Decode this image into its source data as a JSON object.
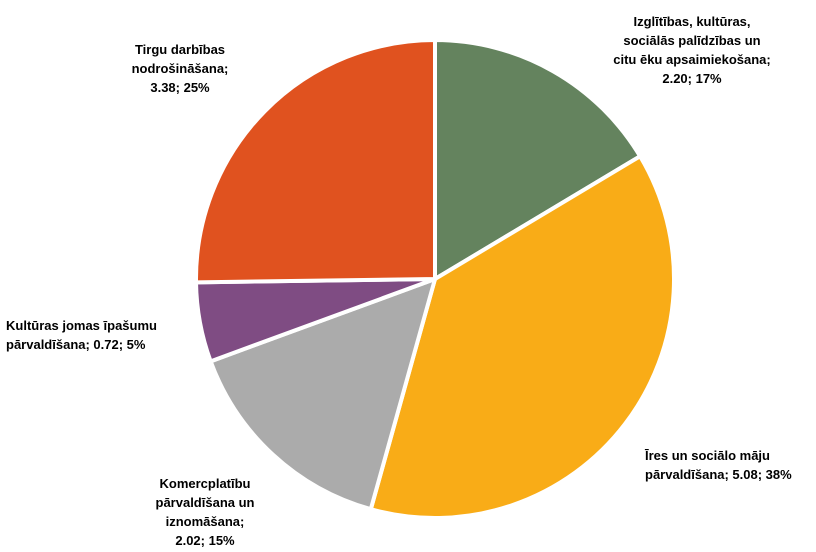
{
  "chart_data": {
    "type": "pie",
    "slices": [
      {
        "label": "Izglītības, kultūras,\nsociālās palīdzības un\ncitu ēku apsaimiekošana;\n2.20; 17%",
        "value": 2.2,
        "percent": 17,
        "color": "#64835E"
      },
      {
        "label": "Īres un sociālo māju\npārvaldīšana;  5.08; 38%",
        "value": 5.08,
        "percent": 38,
        "color": "#F9AC17"
      },
      {
        "label": "Komercplatību\npārvaldīšana un\niznomāšana;\n2.02; 15%",
        "value": 2.02,
        "percent": 15,
        "color": "#ABABAB"
      },
      {
        "label": "Kultūras jomas īpašumu\npārvaldīšana;  0.72; 5%",
        "value": 0.72,
        "percent": 5,
        "color": "#7F4C83"
      },
      {
        "label": "Tirgu darbības\nnodrošināšana;\n3.38; 25%",
        "value": 3.38,
        "percent": 25,
        "color": "#E0521F"
      }
    ]
  }
}
